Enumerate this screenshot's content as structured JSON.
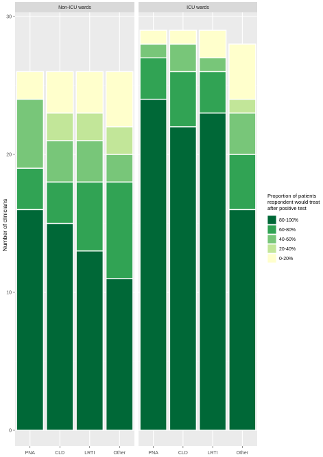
{
  "chart_data": {
    "type": "bar",
    "stacked": true,
    "ylabel": "Number of clinicians",
    "ylim": [
      0,
      30
    ],
    "yticks": [
      0,
      10,
      20,
      30
    ],
    "grid": true,
    "legend_position": "right",
    "legend_title_lines": [
      "Proportion of patients",
      "respondent would treat",
      "after positive test"
    ],
    "colors": {
      "80-100%": "#006837",
      "60-80%": "#31a354",
      "40-60%": "#78c679",
      "20-40%": "#c2e699",
      "0-20%": "#ffffcc"
    },
    "legend": [
      "80-100%",
      "60-80%",
      "40-60%",
      "20-40%",
      "0-20%"
    ],
    "categories": [
      "PNA",
      "CLD",
      "LRTI",
      "Other"
    ],
    "panels": [
      {
        "title": "Non-ICU wards",
        "series": [
          {
            "name": "80-100%",
            "values": [
              16,
              15,
              13,
              11
            ]
          },
          {
            "name": "60-80%",
            "values": [
              3,
              3,
              5,
              7
            ]
          },
          {
            "name": "40-60%",
            "values": [
              5,
              3,
              3,
              2
            ]
          },
          {
            "name": "20-40%",
            "values": [
              0,
              2,
              2,
              2
            ]
          },
          {
            "name": "0-20%",
            "values": [
              2,
              3,
              3,
              4
            ]
          }
        ]
      },
      {
        "title": "ICU wards",
        "series": [
          {
            "name": "80-100%",
            "values": [
              24,
              22,
              23,
              16
            ]
          },
          {
            "name": "60-80%",
            "values": [
              3,
              4,
              3,
              4
            ]
          },
          {
            "name": "40-60%",
            "values": [
              1,
              2,
              1,
              3
            ]
          },
          {
            "name": "20-40%",
            "values": [
              0,
              0,
              0,
              1
            ]
          },
          {
            "name": "0-20%",
            "values": [
              1,
              1,
              2,
              4
            ]
          }
        ]
      }
    ]
  }
}
